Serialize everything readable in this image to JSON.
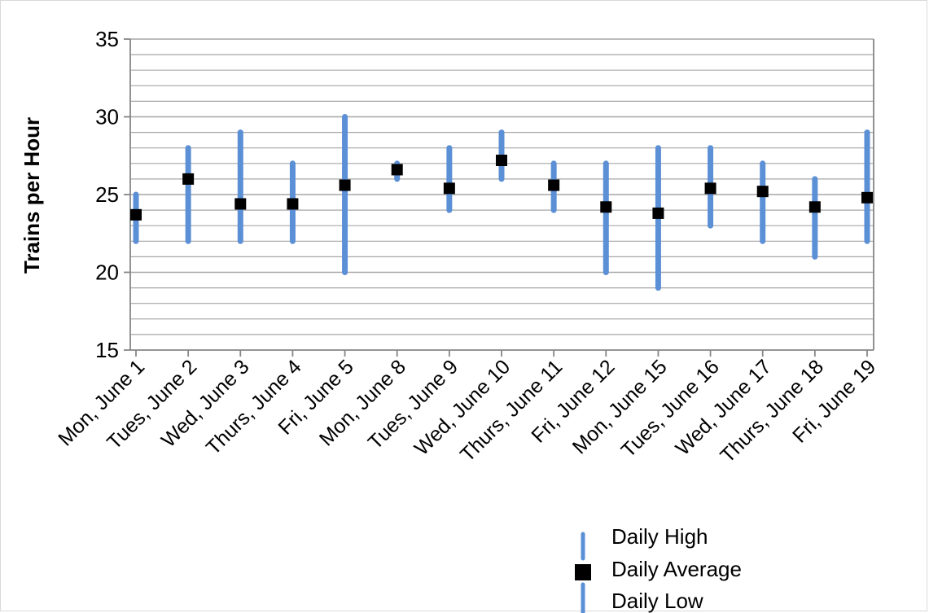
{
  "chart_data": {
    "type": "stock-hlc",
    "title": "",
    "xlabel": "",
    "ylabel": "Trains per Hour",
    "ylim": [
      15,
      35
    ],
    "y_major_ticks": [
      15,
      20,
      25,
      30,
      35
    ],
    "y_minor_step": 1,
    "grid": true,
    "legend_position": "bottom-right",
    "categories": [
      "Mon, June 1",
      "Tues, June 2",
      "Wed, June 3",
      "Thurs, June 4",
      "Fri, June 5",
      "Mon, June 8",
      "Tues, June 9",
      "Wed, June 10",
      "Thurs, June 11",
      "Fri, June 12",
      "Mon, June 15",
      "Tues, June 16",
      "Wed, June 17",
      "Thurs, June 18",
      "Fri, June 19"
    ],
    "series": [
      {
        "name": "Daily High",
        "values": [
          25,
          28,
          29,
          27,
          30,
          27,
          28,
          29,
          27,
          27,
          28,
          28,
          27,
          26,
          29
        ]
      },
      {
        "name": "Daily Average",
        "values": [
          23.7,
          26,
          24.4,
          24.4,
          25.6,
          26.6,
          25.4,
          27.2,
          25.6,
          24.2,
          23.8,
          25.4,
          25.2,
          24.2,
          24.8
        ]
      },
      {
        "name": "Daily Low",
        "values": [
          22,
          22,
          22,
          22,
          20,
          26,
          24,
          26,
          24,
          20,
          19,
          23,
          22,
          21,
          22
        ]
      }
    ],
    "colors": {
      "range": "#5b8fd6",
      "average": "#000000",
      "grid": "#a6a6a6",
      "axis": "#868686"
    }
  }
}
